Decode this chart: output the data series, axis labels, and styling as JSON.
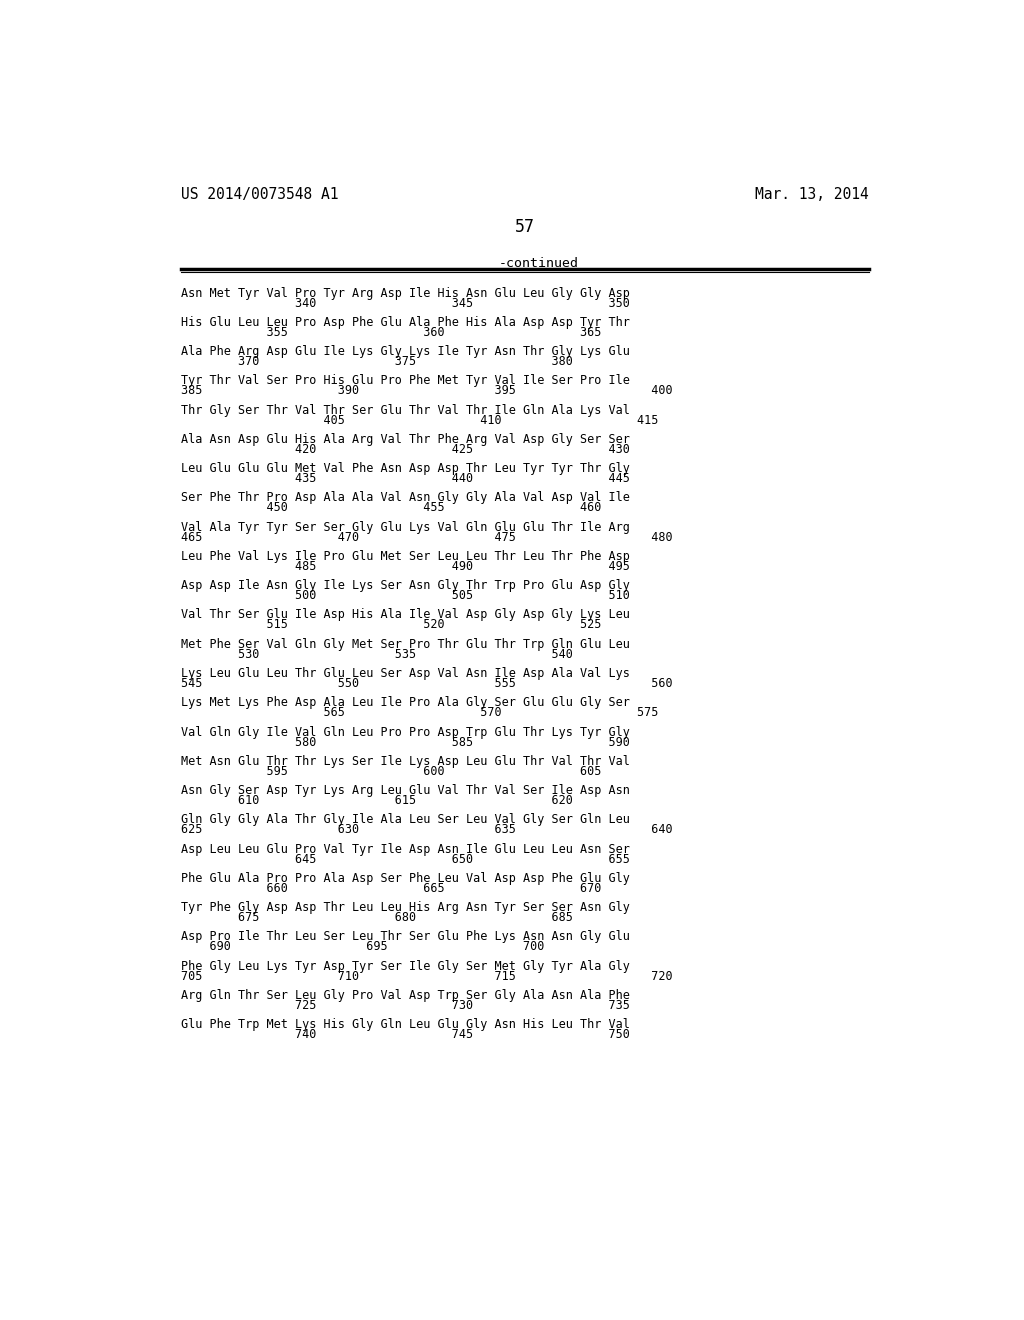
{
  "header_left": "US 2014/0073548 A1",
  "header_right": "Mar. 13, 2014",
  "page_number": "57",
  "continued_label": "-continued",
  "background_color": "#ffffff",
  "text_color": "#000000",
  "sequence_lines": [
    [
      "Asn Met Tyr Val Pro Tyr Arg Asp Ile His Asn Glu Leu Gly Gly Asp",
      "                340                   345                   350"
    ],
    [
      "His Glu Leu Leu Pro Asp Phe Glu Ala Phe His Ala Asp Asp Tyr Thr",
      "            355                   360                   365"
    ],
    [
      "Ala Phe Arg Asp Glu Ile Lys Gly Lys Ile Tyr Asn Thr Gly Lys Glu",
      "        370                   375                   380"
    ],
    [
      "Tyr Thr Val Ser Pro His Glu Pro Phe Met Tyr Val Ile Ser Pro Ile",
      "385                   390                   395                   400"
    ],
    [
      "Thr Gly Ser Thr Val Thr Ser Glu Thr Val Thr Ile Gln Ala Lys Val",
      "                    405                   410                   415"
    ],
    [
      "Ala Asn Asp Glu His Ala Arg Val Thr Phe Arg Val Asp Gly Ser Ser",
      "                420                   425                   430"
    ],
    [
      "Leu Glu Glu Glu Met Val Phe Asn Asp Asp Thr Leu Tyr Tyr Thr Gly",
      "                435                   440                   445"
    ],
    [
      "Ser Phe Thr Pro Asp Ala Ala Val Asn Gly Gly Ala Val Asp Val Ile",
      "            450                   455                   460"
    ],
    [
      "Val Ala Tyr Tyr Ser Ser Gly Glu Lys Val Gln Glu Glu Thr Ile Arg",
      "465                   470                   475                   480"
    ],
    [
      "Leu Phe Val Lys Ile Pro Glu Met Ser Leu Leu Thr Leu Thr Phe Asp",
      "                485                   490                   495"
    ],
    [
      "Asp Asp Ile Asn Gly Ile Lys Ser Asn Gly Thr Trp Pro Glu Asp Gly",
      "                500                   505                   510"
    ],
    [
      "Val Thr Ser Glu Ile Asp His Ala Ile Val Asp Gly Asp Gly Lys Leu",
      "            515                   520                   525"
    ],
    [
      "Met Phe Ser Val Gln Gly Met Ser Pro Thr Glu Thr Trp Gln Glu Leu",
      "        530                   535                   540"
    ],
    [
      "Lys Leu Glu Leu Thr Glu Leu Ser Asp Val Asn Ile Asp Ala Val Lys",
      "545                   550                   555                   560"
    ],
    [
      "Lys Met Lys Phe Asp Ala Leu Ile Pro Ala Gly Ser Glu Glu Gly Ser",
      "                    565                   570                   575"
    ],
    [
      "Val Gln Gly Ile Val Gln Leu Pro Pro Asp Trp Glu Thr Lys Tyr Gly",
      "                580                   585                   590"
    ],
    [
      "Met Asn Glu Thr Thr Lys Ser Ile Lys Asp Leu Glu Thr Val Thr Val",
      "            595                   600                   605"
    ],
    [
      "Asn Gly Ser Asp Tyr Lys Arg Leu Glu Val Thr Val Ser Ile Asp Asn",
      "        610                   615                   620"
    ],
    [
      "Gln Gly Gly Ala Thr Gly Ile Ala Leu Ser Leu Val Gly Ser Gln Leu",
      "625                   630                   635                   640"
    ],
    [
      "Asp Leu Leu Glu Pro Val Tyr Ile Asp Asn Ile Glu Leu Leu Asn Ser",
      "                645                   650                   655"
    ],
    [
      "Phe Glu Ala Pro Pro Ala Asp Ser Phe Leu Val Asp Asp Phe Glu Gly",
      "            660                   665                   670"
    ],
    [
      "Tyr Phe Gly Asp Asp Thr Leu Leu His Arg Asn Tyr Ser Ser Asn Gly",
      "        675                   680                   685"
    ],
    [
      "Asp Pro Ile Thr Leu Ser Leu Thr Ser Glu Phe Lys Asn Asn Gly Glu",
      "    690                   695                   700"
    ],
    [
      "Phe Gly Leu Lys Tyr Asp Tyr Ser Ile Gly Ser Met Gly Tyr Ala Gly",
      "705                   710                   715                   720"
    ],
    [
      "Arg Gln Thr Ser Leu Gly Pro Val Asp Trp Ser Gly Ala Asn Ala Phe",
      "                725                   730                   735"
    ],
    [
      "Glu Phe Trp Met Lys His Gly Gln Leu Glu Gly Asn His Leu Thr Val",
      "                740                   745                   750"
    ]
  ]
}
